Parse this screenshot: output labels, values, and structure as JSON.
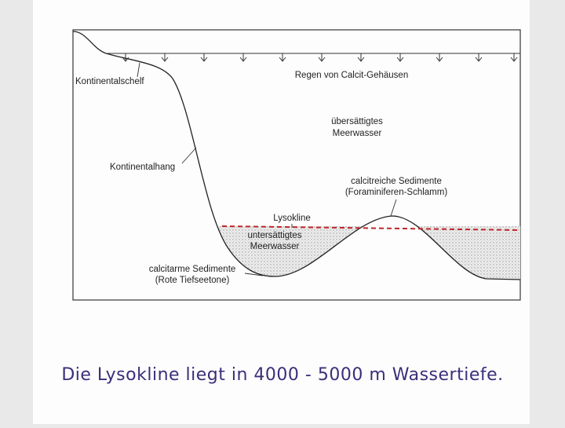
{
  "diagram": {
    "rain_label": "Regen von Calcit-Gehäusen",
    "shelf_label": "Kontinentalschelf",
    "supersaturated_label": [
      "übersättigtes",
      "Meerwasser"
    ],
    "slope_label": "Kontinentalhang",
    "calcite_rich_label": [
      "calcitreiche Sedimente",
      "(Foraminiferen-Schlamm)"
    ],
    "lysocline_label": "Lysokline",
    "undersaturated_label": [
      "untersättigtes",
      "Meerwasser"
    ],
    "calcite_poor_label": [
      "calcitarme Sedimente",
      "(Rote Tiefseetone)"
    ]
  },
  "caption": "Die Lysokline liegt in 4000 - 5000 m Wassertiefe."
}
